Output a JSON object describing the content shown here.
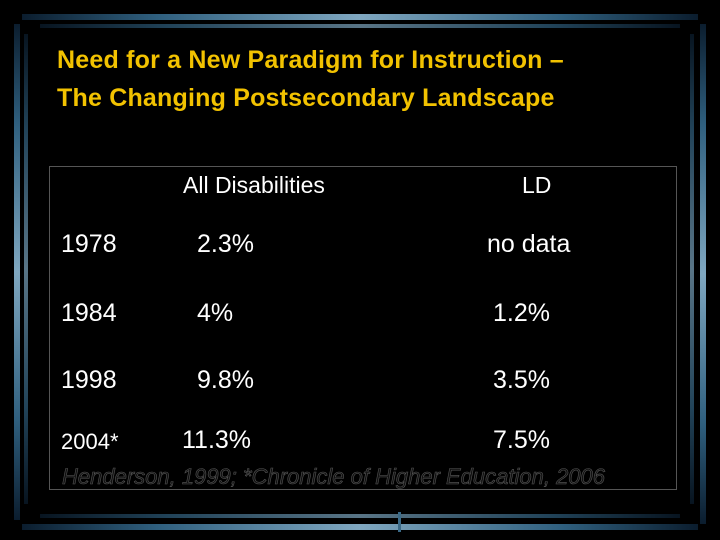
{
  "slide": {
    "title_line_1": "Need for a New Paradigm for Instruction –",
    "title_line_2": "The Changing Postsecondary Landscape",
    "title_color": "#f2c200",
    "background_color": "#000000"
  },
  "table": {
    "headers": {
      "all_disabilities": "All Disabilities",
      "ld": "LD"
    },
    "rows": [
      {
        "year": "1978",
        "all_disabilities": "2.3%",
        "ld": "no data"
      },
      {
        "year": "1984",
        "all_disabilities": "4%",
        "ld": "1.2%"
      },
      {
        "year": "1998",
        "all_disabilities": "9.8%",
        "ld": "3.5%"
      },
      {
        "year": "2004*",
        "all_disabilities": "11.3%",
        "ld": "7.5%"
      }
    ],
    "citation": "Henderson, 1999; *Chronicle of Higher Education, 2006"
  }
}
